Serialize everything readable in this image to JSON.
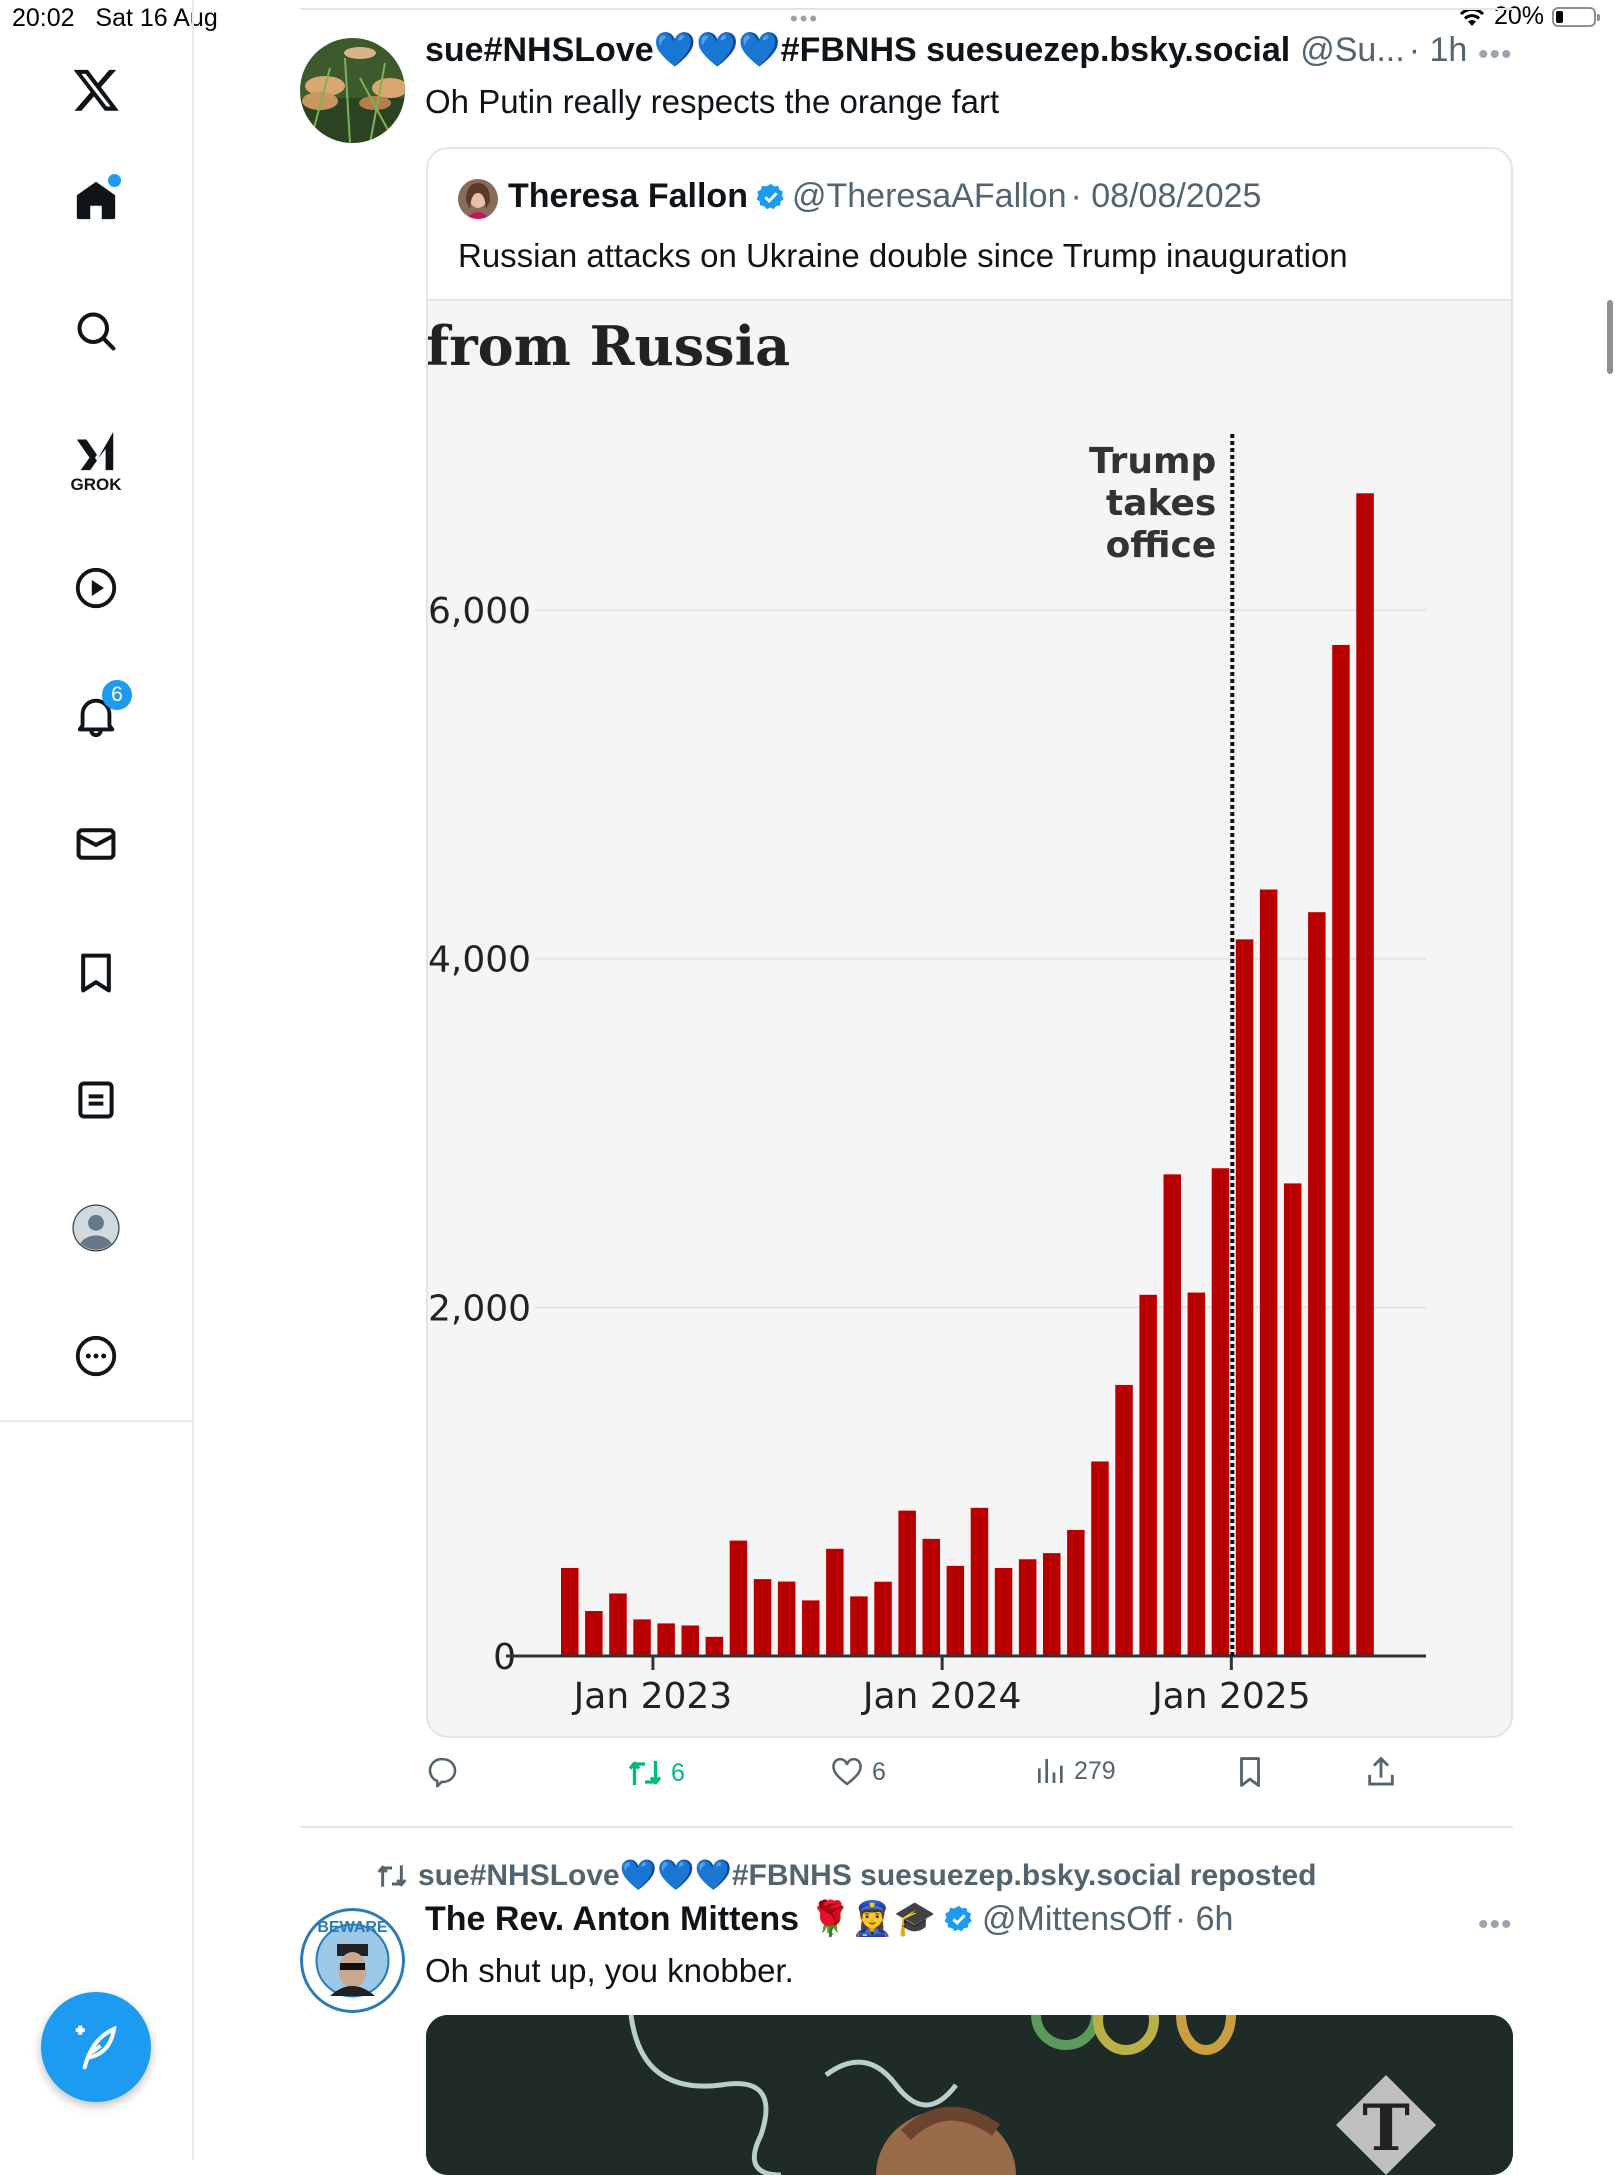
{
  "status_bar": {
    "time": "20:02",
    "date": "Sat 16 Aug",
    "battery": "20%",
    "battery_level": 0.2,
    "center_dots": "•••"
  },
  "sidebar": {
    "items": [
      {
        "name": "x-logo",
        "icon": "x-logo-icon"
      },
      {
        "name": "home",
        "icon": "home-icon",
        "dot": true
      },
      {
        "name": "explore",
        "icon": "search-icon"
      },
      {
        "name": "grok",
        "icon": "grok-icon",
        "label": "GROK"
      },
      {
        "name": "videos",
        "icon": "play-icon"
      },
      {
        "name": "notifications",
        "icon": "bell-icon",
        "badge": "6"
      },
      {
        "name": "messages",
        "icon": "mail-icon"
      },
      {
        "name": "bookmarks",
        "icon": "bookmark-icon"
      },
      {
        "name": "lists",
        "icon": "list-icon"
      },
      {
        "name": "profile",
        "icon": "profile-avatar-icon"
      },
      {
        "name": "more",
        "icon": "more-circle-icon"
      }
    ],
    "compose_icon": "compose-feather-icon"
  },
  "colors": {
    "accent": "#1d9bf0",
    "retweet_green": "#00ba7c",
    "bar_red": "#b80000",
    "text_secondary": "#536471"
  },
  "tweet1": {
    "name_pre": "sue#NHSLove",
    "hearts": "💙💙💙",
    "name_post": "#FBNHS suesuezep.bsky.social",
    "handle": "@Su...",
    "time": "· 1h",
    "more": "•••",
    "text": "Oh Putin really respects the orange fart",
    "quote": {
      "name": "Theresa Fallon",
      "handle": "@TheresaAFallon",
      "date": "· 08/08/2025",
      "text": "Russian attacks on Ukraine double since Trump inauguration"
    },
    "actions": {
      "retweets": "6",
      "likes": "6",
      "views": "279"
    }
  },
  "chart_data": {
    "type": "bar",
    "title": "from Russia",
    "annotation": [
      "Trump",
      "takes",
      "office"
    ],
    "annotation_after_bar_index": 27,
    "xlabel": "",
    "ylabel": "",
    "ylim": [
      0,
      7000
    ],
    "yticks": [
      0,
      2000,
      4000,
      6000
    ],
    "ytick_labels": [
      "0",
      "2,000",
      "4,000",
      "6,000"
    ],
    "xtick_labels": [
      "Jan 2023",
      "Jan 2024",
      "Jan 2025"
    ],
    "xtick_bar_positions": [
      2,
      14,
      26
    ],
    "values": [
      505,
      258,
      359,
      210,
      187,
      175,
      110,
      662,
      441,
      427,
      319,
      615,
      342,
      426,
      834,
      672,
      517,
      850,
      505,
      555,
      590,
      723,
      1116,
      1555,
      2072,
      2763,
      2085,
      2798,
      4111,
      4397,
      2711,
      4267,
      5800,
      6670
    ],
    "grid": true
  },
  "repost": {
    "name_pre": "sue#NHSLove",
    "hearts": "💙💙💙",
    "name_post": "#FBNHS suesuezep.bsky.social reposted"
  },
  "tweet2": {
    "name": "The Rev. Anton Mittens",
    "emojis": "🌹👮‍♀️🎓",
    "handle": "@MittensOff",
    "time": "· 6h",
    "more": "•••",
    "text": "Oh shut up, you knobber.",
    "avatar_text": "BEWARE",
    "media_watermark": "T"
  }
}
